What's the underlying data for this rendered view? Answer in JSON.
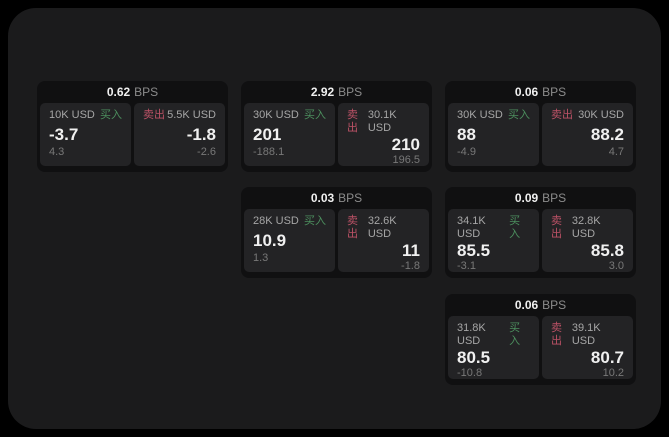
{
  "labels": {
    "bps_unit": "BPS",
    "buy": "买入",
    "sell": "卖出"
  },
  "colors": {
    "background": "#000000",
    "panel": "#1b1b1c",
    "card": "#101011",
    "tile": "#232325",
    "buy": "#4c8f5e",
    "sell": "#bc5266"
  },
  "cards": [
    {
      "bps": "0.62",
      "buy": {
        "amount": "10K USD",
        "price": "-3.7",
        "delta": "4.3"
      },
      "sell": {
        "amount": "5.5K USD",
        "price": "-1.8",
        "delta": "-2.6"
      }
    },
    {
      "bps": "2.92",
      "buy": {
        "amount": "30K USD",
        "price": "201",
        "delta": "-188.1"
      },
      "sell": {
        "amount": "30.1K USD",
        "price": "210",
        "delta": "196.5"
      }
    },
    {
      "bps": "0.06",
      "buy": {
        "amount": "30K USD",
        "price": "88",
        "delta": "-4.9"
      },
      "sell": {
        "amount": "30K USD",
        "price": "88.2",
        "delta": "4.7"
      }
    },
    {
      "bps": "0.03",
      "buy": {
        "amount": "28K USD",
        "price": "10.9",
        "delta": "1.3"
      },
      "sell": {
        "amount": "32.6K USD",
        "price": "11",
        "delta": "-1.8"
      }
    },
    {
      "bps": "0.09",
      "buy": {
        "amount": "34.1K USD",
        "price": "85.5",
        "delta": "-3.1"
      },
      "sell": {
        "amount": "32.8K USD",
        "price": "85.8",
        "delta": "3.0"
      }
    },
    {
      "bps": "0.06",
      "buy": {
        "amount": "31.8K USD",
        "price": "80.5",
        "delta": "-10.8"
      },
      "sell": {
        "amount": "39.1K USD",
        "price": "80.7",
        "delta": "10.2"
      }
    }
  ]
}
